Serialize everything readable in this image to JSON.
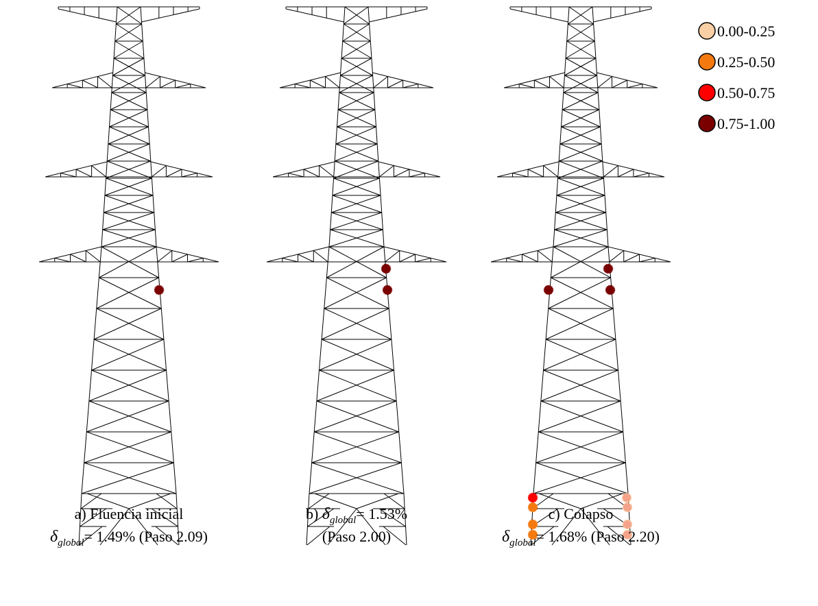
{
  "panels": [
    {
      "lines": [
        {
          "prefix": "a) Fluencia inicial"
        },
        {
          "symbol": "δ",
          "subscript": "global",
          "suffix": "= 1.49% (Paso 2.09)"
        }
      ]
    },
    {
      "lines": [
        {
          "prefix": "b) ",
          "symbol": "δ",
          "subscript": "global",
          "suffix": "= 1.53%"
        },
        {
          "prefix": "(Paso 2.00)"
        }
      ]
    },
    {
      "lines": [
        {
          "prefix": "c) Colapso"
        },
        {
          "symbol": "δ",
          "subscript": "global",
          "suffix": "= 1.68% (Paso 2.20)"
        }
      ]
    }
  ],
  "legend": [
    {
      "label": "0.00-0.25",
      "color": "#f9cfa5"
    },
    {
      "label": "0.25-0.50",
      "color": "#f47a10"
    },
    {
      "label": "0.50-0.75",
      "color": "#ff0000"
    },
    {
      "label": "0.75-1.00",
      "color": "#7a0000"
    }
  ]
}
